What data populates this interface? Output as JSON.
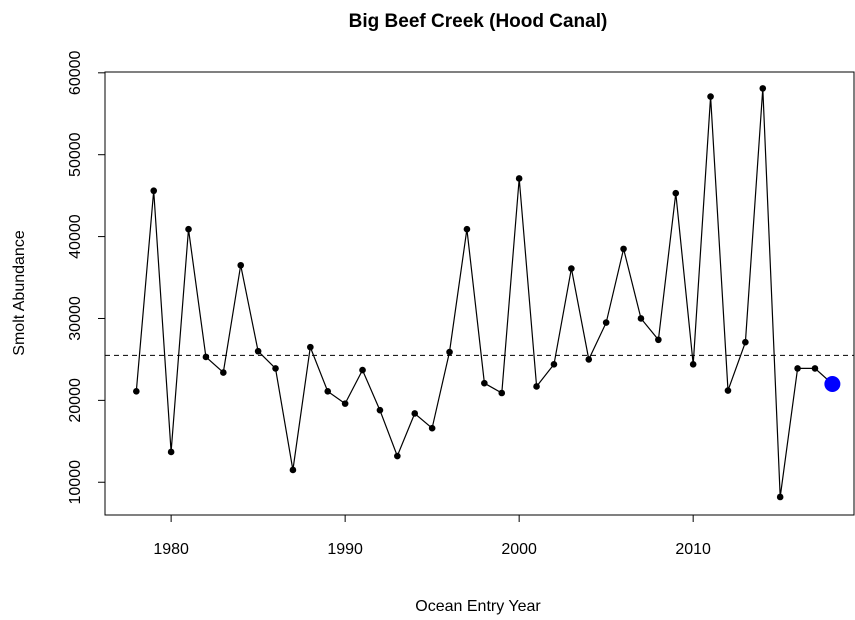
{
  "chart_data": {
    "type": "line",
    "title": "Big Beef Creek (Hood Canal)",
    "x_label": "Ocean Entry Year",
    "y_label": "Smolt Abundance",
    "x": [
      1978,
      1979,
      1980,
      1981,
      1982,
      1983,
      1984,
      1985,
      1986,
      1987,
      1988,
      1989,
      1990,
      1991,
      1992,
      1993,
      1994,
      1995,
      1996,
      1997,
      1998,
      1999,
      2000,
      2001,
      2002,
      2003,
      2004,
      2005,
      2006,
      2007,
      2008,
      2009,
      2010,
      2011,
      2012,
      2013,
      2014,
      2015,
      2016,
      2017,
      2018
    ],
    "series": [
      {
        "color": "#000000",
        "values": [
          21100,
          45600,
          13700,
          40900,
          25300,
          23400,
          36500,
          26000,
          23900,
          11500,
          26500,
          21100,
          19600,
          23700,
          18800,
          13200,
          18400,
          16600,
          25900,
          40900,
          22100,
          20900,
          47100,
          21700,
          24400,
          36100,
          25000,
          29500,
          38500,
          30000,
          27400,
          45300,
          24400,
          57100,
          21200,
          27100,
          58100,
          8200,
          23900,
          23900,
          22000
        ]
      }
    ],
    "last_point_color": "#0000ff",
    "reference_line": 25500,
    "xlim": [
      1976.2,
      2019.3
    ],
    "xticks": [
      1980,
      1990,
      2000,
      2010
    ],
    "ylim": [
      6000,
      60100
    ],
    "yticks": [
      10000,
      20000,
      30000,
      40000,
      50000,
      60000
    ]
  }
}
